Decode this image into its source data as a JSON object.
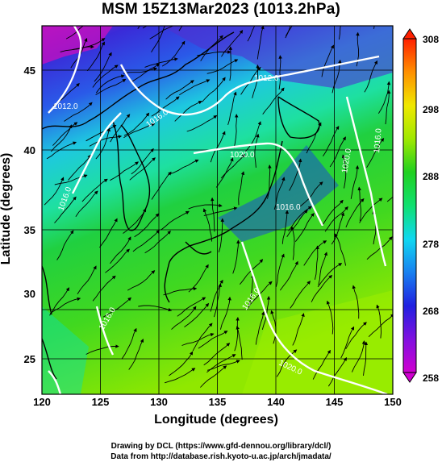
{
  "title": "MSM 15Z13Mar2023 (1013.2hPa)",
  "x_axis_label": "Longitude (degrees)",
  "y_axis_label": "Latitude  (degrees)",
  "x_ticks": [
    120,
    125,
    130,
    135,
    140,
    145,
    150
  ],
  "y_ticks": [
    25,
    30,
    35,
    40,
    45
  ],
  "colorbar_ticks": [
    258,
    268,
    278,
    288,
    298,
    308
  ],
  "contour_labels": [
    "1012.0",
    "1016.0",
    "1012.0",
    "1016.0",
    "1020.0",
    "1016.0",
    "1020.0",
    "1016.0",
    "1016.0",
    "1020.0",
    "1016.0"
  ],
  "credits": {
    "line1": "Drawing by DCL (https://www.gfd-dennou.org/library/dcl/)",
    "line2": "Data from http://database.rish.kyoto-u.ac.jp/arch/jmadata/"
  },
  "colors": {
    "cold": "#d000d0",
    "warm": "#ff2000",
    "contour": "#ffffff",
    "streamline": "#000000"
  }
}
